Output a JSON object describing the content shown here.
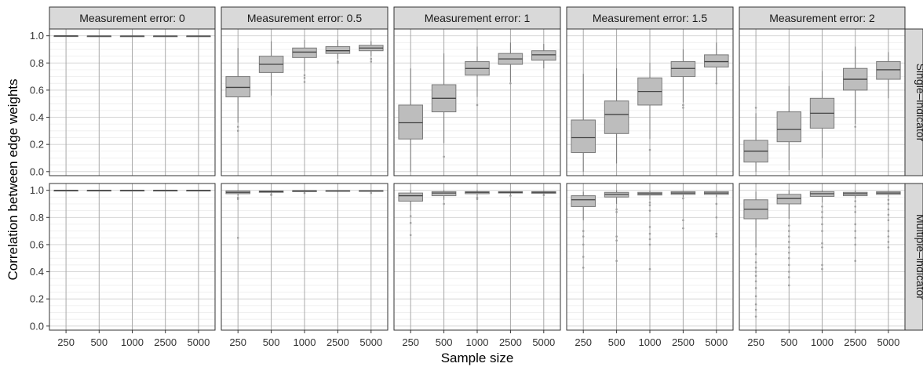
{
  "chart_data": {
    "type": "boxplot",
    "xlabel": "Sample size",
    "ylabel": "Correlation between edge weights",
    "categories": [
      "250",
      "500",
      "1000",
      "2500",
      "5000"
    ],
    "ylim": [
      -0.03,
      1.05
    ],
    "yticks": [
      "0.0",
      "0.2",
      "0.4",
      "0.6",
      "0.8",
      "1.0"
    ],
    "grid": true,
    "facet_columns": [
      {
        "label": "Measurement error: 0"
      },
      {
        "label": "Measurement error: 0.5"
      },
      {
        "label": "Measurement error: 1"
      },
      {
        "label": "Measurement error: 1.5"
      },
      {
        "label": "Measurement error: 2"
      }
    ],
    "facet_rows": [
      {
        "label": "Single–indicator"
      },
      {
        "label": "Multiple–indicator"
      }
    ],
    "panels": [
      {
        "row": 0,
        "col": 0,
        "boxes": [
          {
            "wlo": 0.996,
            "q1": 0.998,
            "med": 0.999,
            "q3": 1.0,
            "whi": 1.0,
            "out": []
          },
          {
            "wlo": 0.994,
            "q1": 0.997,
            "med": 0.998,
            "q3": 0.999,
            "whi": 1.0,
            "out": []
          },
          {
            "wlo": 0.994,
            "q1": 0.997,
            "med": 0.998,
            "q3": 0.999,
            "whi": 1.0,
            "out": []
          },
          {
            "wlo": 0.994,
            "q1": 0.997,
            "med": 0.998,
            "q3": 0.999,
            "whi": 1.0,
            "out": []
          },
          {
            "wlo": 0.994,
            "q1": 0.997,
            "med": 0.998,
            "q3": 0.999,
            "whi": 1.0,
            "out": []
          }
        ]
      },
      {
        "row": 0,
        "col": 1,
        "boxes": [
          {
            "wlo": 0.36,
            "q1": 0.55,
            "med": 0.62,
            "q3": 0.7,
            "whi": 0.91,
            "out": [
              0.33,
              0.3
            ]
          },
          {
            "wlo": 0.56,
            "q1": 0.73,
            "med": 0.79,
            "q3": 0.85,
            "whi": 0.96,
            "out": []
          },
          {
            "wlo": 0.74,
            "q1": 0.84,
            "med": 0.88,
            "q3": 0.91,
            "whi": 0.97,
            "out": [
              0.71,
              0.69,
              0.66
            ]
          },
          {
            "wlo": 0.83,
            "q1": 0.87,
            "med": 0.89,
            "q3": 0.92,
            "whi": 0.97,
            "out": [
              0.81,
              0.8
            ]
          },
          {
            "wlo": 0.85,
            "q1": 0.89,
            "med": 0.91,
            "q3": 0.93,
            "whi": 0.96,
            "out": [
              0.83,
              0.81
            ]
          }
        ]
      },
      {
        "row": 0,
        "col": 2,
        "boxes": [
          {
            "wlo": 0.0,
            "q1": 0.24,
            "med": 0.36,
            "q3": 0.49,
            "whi": 0.76,
            "out": []
          },
          {
            "wlo": 0.21,
            "q1": 0.44,
            "med": 0.54,
            "q3": 0.64,
            "whi": 0.87,
            "out": [
              0.11
            ]
          },
          {
            "wlo": 0.55,
            "q1": 0.71,
            "med": 0.76,
            "q3": 0.81,
            "whi": 0.92,
            "out": [
              0.49
            ]
          },
          {
            "wlo": 0.66,
            "q1": 0.79,
            "med": 0.83,
            "q3": 0.87,
            "whi": 0.95,
            "out": [
              0.65
            ]
          },
          {
            "wlo": 0.76,
            "q1": 0.82,
            "med": 0.86,
            "q3": 0.89,
            "whi": 0.94,
            "out": []
          }
        ]
      },
      {
        "row": 0,
        "col": 3,
        "boxes": [
          {
            "wlo": 0.0,
            "q1": 0.14,
            "med": 0.25,
            "q3": 0.38,
            "whi": 0.72,
            "out": []
          },
          {
            "wlo": 0.06,
            "q1": 0.28,
            "med": 0.42,
            "q3": 0.52,
            "whi": 0.76,
            "out": []
          },
          {
            "wlo": 0.24,
            "q1": 0.49,
            "med": 0.59,
            "q3": 0.69,
            "whi": 0.8,
            "out": [
              0.16
            ]
          },
          {
            "wlo": 0.51,
            "q1": 0.7,
            "med": 0.76,
            "q3": 0.81,
            "whi": 0.9,
            "out": [
              0.49,
              0.47
            ]
          },
          {
            "wlo": 0.66,
            "q1": 0.77,
            "med": 0.81,
            "q3": 0.86,
            "whi": 0.95,
            "out": [
              0.65
            ]
          }
        ]
      },
      {
        "row": 0,
        "col": 4,
        "boxes": [
          {
            "wlo": 0.0,
            "q1": 0.07,
            "med": 0.15,
            "q3": 0.23,
            "whi": 0.43,
            "out": [
              0.47
            ]
          },
          {
            "wlo": 0.01,
            "q1": 0.22,
            "med": 0.31,
            "q3": 0.44,
            "whi": 0.63,
            "out": []
          },
          {
            "wlo": 0.1,
            "q1": 0.32,
            "med": 0.43,
            "q3": 0.54,
            "whi": 0.74,
            "out": []
          },
          {
            "wlo": 0.35,
            "q1": 0.6,
            "med": 0.68,
            "q3": 0.76,
            "whi": 0.92,
            "out": [
              0.33
            ]
          },
          {
            "wlo": 0.54,
            "q1": 0.68,
            "med": 0.75,
            "q3": 0.81,
            "whi": 0.88,
            "out": []
          }
        ]
      },
      {
        "row": 1,
        "col": 0,
        "boxes": [
          {
            "wlo": 0.998,
            "q1": 0.999,
            "med": 1.0,
            "q3": 1.0,
            "whi": 1.0,
            "out": []
          },
          {
            "wlo": 0.998,
            "q1": 0.999,
            "med": 1.0,
            "q3": 1.0,
            "whi": 1.0,
            "out": []
          },
          {
            "wlo": 0.998,
            "q1": 0.999,
            "med": 1.0,
            "q3": 1.0,
            "whi": 1.0,
            "out": []
          },
          {
            "wlo": 0.998,
            "q1": 0.999,
            "med": 1.0,
            "q3": 1.0,
            "whi": 1.0,
            "out": []
          },
          {
            "wlo": 0.998,
            "q1": 0.999,
            "med": 1.0,
            "q3": 1.0,
            "whi": 1.0,
            "out": []
          }
        ]
      },
      {
        "row": 1,
        "col": 1,
        "boxes": [
          {
            "wlo": 0.96,
            "q1": 0.975,
            "med": 0.985,
            "q3": 0.995,
            "whi": 1.0,
            "out": [
              0.945,
              0.94,
              0.935,
              0.65
            ]
          },
          {
            "wlo": 0.975,
            "q1": 0.985,
            "med": 0.99,
            "q3": 0.995,
            "whi": 1.0,
            "out": [
              0.97,
              0.965
            ]
          },
          {
            "wlo": 0.985,
            "q1": 0.99,
            "med": 0.995,
            "q3": 0.998,
            "whi": 1.0,
            "out": [
              0.98
            ]
          },
          {
            "wlo": 0.988,
            "q1": 0.992,
            "med": 0.995,
            "q3": 0.998,
            "whi": 1.0,
            "out": []
          },
          {
            "wlo": 0.988,
            "q1": 0.992,
            "med": 0.995,
            "q3": 0.998,
            "whi": 1.0,
            "out": [
              0.98
            ]
          }
        ]
      },
      {
        "row": 1,
        "col": 2,
        "boxes": [
          {
            "wlo": 0.85,
            "q1": 0.92,
            "med": 0.96,
            "q3": 0.98,
            "whi": 1.0,
            "out": [
              0.81,
              0.76,
              0.67
            ]
          },
          {
            "wlo": 0.93,
            "q1": 0.96,
            "med": 0.98,
            "q3": 0.99,
            "whi": 1.0,
            "out": [
              0.9
            ]
          },
          {
            "wlo": 0.95,
            "q1": 0.975,
            "med": 0.985,
            "q3": 0.99,
            "whi": 1.0,
            "out": [
              0.945,
              0.935
            ]
          },
          {
            "wlo": 0.965,
            "q1": 0.98,
            "med": 0.985,
            "q3": 0.99,
            "whi": 0.995,
            "out": [
              0.96
            ]
          },
          {
            "wlo": 0.97,
            "q1": 0.978,
            "med": 0.985,
            "q3": 0.99,
            "whi": 0.995,
            "out": [
              0.965
            ]
          }
        ]
      },
      {
        "row": 1,
        "col": 3,
        "boxes": [
          {
            "wlo": 0.78,
            "q1": 0.88,
            "med": 0.93,
            "q3": 0.96,
            "whi": 0.99,
            "out": [
              0.7,
              0.66,
              0.6,
              0.51,
              0.43
            ]
          },
          {
            "wlo": 0.9,
            "q1": 0.95,
            "med": 0.97,
            "q3": 0.985,
            "whi": 1.0,
            "out": [
              0.86,
              0.84,
              0.66,
              0.63,
              0.48
            ]
          },
          {
            "wlo": 0.93,
            "q1": 0.965,
            "med": 0.975,
            "q3": 0.985,
            "whi": 0.995,
            "out": [
              0.91,
              0.89,
              0.85,
              0.73,
              0.68,
              0.64,
              0.6,
              0.42
            ]
          },
          {
            "wlo": 0.95,
            "q1": 0.97,
            "med": 0.98,
            "q3": 0.99,
            "whi": 0.995,
            "out": [
              0.94,
              0.78,
              0.72
            ]
          },
          {
            "wlo": 0.95,
            "q1": 0.97,
            "med": 0.98,
            "q3": 0.99,
            "whi": 0.995,
            "out": [
              0.9,
              0.8,
              0.68,
              0.66
            ]
          }
        ]
      },
      {
        "row": 1,
        "col": 4,
        "boxes": [
          {
            "wlo": 0.58,
            "q1": 0.79,
            "med": 0.86,
            "q3": 0.93,
            "whi": 0.99,
            "out": [
              0.53,
              0.47,
              0.43,
              0.4,
              0.37,
              0.33,
              0.28,
              0.22,
              0.16,
              0.12,
              0.07
            ]
          },
          {
            "wlo": 0.79,
            "q1": 0.9,
            "med": 0.94,
            "q3": 0.97,
            "whi": 1.0,
            "out": [
              0.74,
              0.7,
              0.66,
              0.62,
              0.58,
              0.54,
              0.5,
              0.45,
              0.4,
              0.36,
              0.3
            ]
          },
          {
            "wlo": 0.91,
            "q1": 0.955,
            "med": 0.975,
            "q3": 0.99,
            "whi": 1.0,
            "out": [
              0.88,
              0.84,
              0.8,
              0.75,
              0.7,
              0.61,
              0.58,
              0.45,
              0.42
            ]
          },
          {
            "wlo": 0.94,
            "q1": 0.96,
            "med": 0.975,
            "q3": 0.985,
            "whi": 0.995,
            "out": [
              0.92,
              0.88,
              0.84,
              0.75,
              0.7,
              0.65,
              0.6,
              0.48
            ]
          },
          {
            "wlo": 0.95,
            "q1": 0.97,
            "med": 0.98,
            "q3": 0.99,
            "whi": 0.995,
            "out": [
              0.93,
              0.9,
              0.86,
              0.82,
              0.78,
              0.7,
              0.66,
              0.62,
              0.58
            ]
          }
        ]
      }
    ]
  },
  "colors": {
    "panel_border": "#333333",
    "strip_fill": "#d9d9d9",
    "grid_major": "#cfcfcf",
    "grid_minor": "#ebebeb",
    "box_fill": "#bdbdbd",
    "box_line": "#7a7a7a",
    "median_line": "#444444",
    "outlier": "#9e9e9e",
    "text": "#333333"
  }
}
